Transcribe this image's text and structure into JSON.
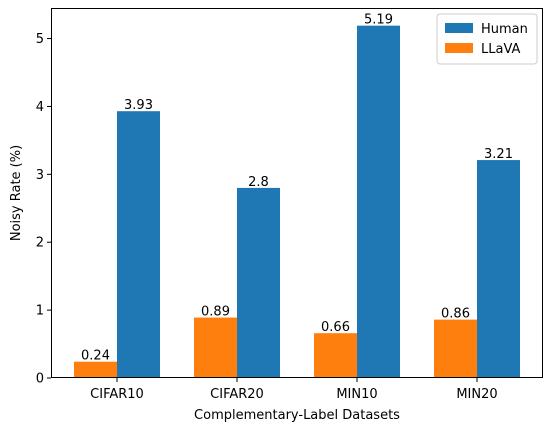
{
  "chart_data": {
    "type": "bar",
    "title": "",
    "xlabel": "Complementary-Label Datasets",
    "ylabel": "Noisy Rate (%)",
    "categories": [
      "CIFAR10",
      "CIFAR20",
      "MIN10",
      "MIN20"
    ],
    "series": [
      {
        "name": "LLaVA",
        "color": "#ff7f0e",
        "values": [
          0.24,
          0.89,
          0.66,
          0.86
        ],
        "labels": [
          "0.24",
          "0.89",
          "0.66",
          "0.86"
        ]
      },
      {
        "name": "Human",
        "color": "#1f77b4",
        "values": [
          3.93,
          2.8,
          5.19,
          3.21
        ],
        "labels": [
          "3.93",
          "2.8",
          "5.19",
          "3.21"
        ]
      }
    ],
    "ylim": [
      0,
      5.45
    ],
    "yticks": [
      0,
      1,
      2,
      3,
      4,
      5
    ],
    "legend": {
      "position": "top-right",
      "order": [
        "Human",
        "LLaVA"
      ]
    },
    "grid": false
  }
}
